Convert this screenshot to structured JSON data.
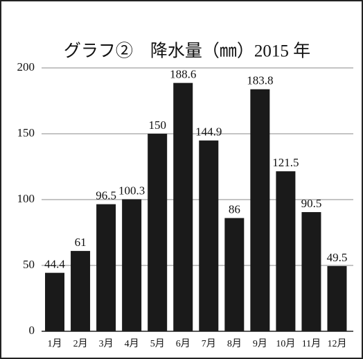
{
  "chart_data": {
    "type": "bar",
    "title": "グラフ②　降水量（㎜）2015 年",
    "categories": [
      "1月",
      "2月",
      "3月",
      "4月",
      "5月",
      "6月",
      "7月",
      "8月",
      "9月",
      "10月",
      "11月",
      "12月"
    ],
    "values": [
      44.4,
      61,
      96.5,
      100.3,
      150,
      188.6,
      144.9,
      86,
      183.8,
      121.5,
      90.5,
      49.5
    ],
    "color": "#1a1a1a",
    "ylim": [
      0,
      200
    ],
    "yticks": [
      0,
      50,
      100,
      150,
      200
    ],
    "grid": true
  }
}
